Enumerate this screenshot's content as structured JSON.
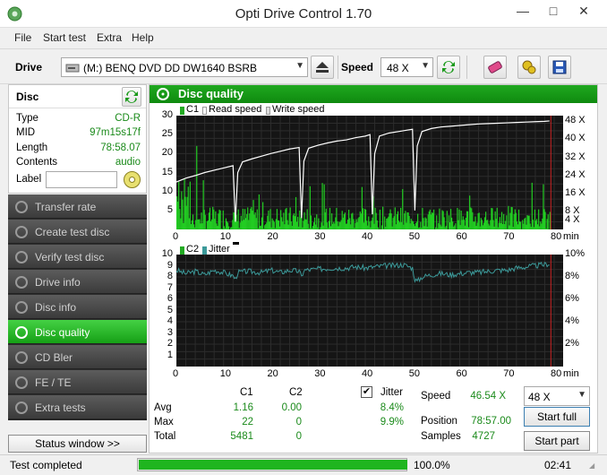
{
  "window": {
    "title": "Opti Drive Control 1.70"
  },
  "menu": {
    "items": [
      "File",
      "Start test",
      "Extra",
      "Help"
    ]
  },
  "toolbar": {
    "drive_label": "Drive",
    "drive_value": "(M:)   BENQ DVD DD DW1640 BSRB",
    "speed_label": "Speed",
    "speed_value": "48 X"
  },
  "disc": {
    "title": "Disc",
    "type_label": "Type",
    "type_value": "CD-R",
    "mid_label": "MID",
    "mid_value": "97m15s17f",
    "length_label": "Length",
    "length_value": "78:58.07",
    "contents_label": "Contents",
    "contents_value": "audio",
    "label_label": "Label",
    "label_value": ""
  },
  "nav": {
    "items": [
      "Transfer rate",
      "Create test disc",
      "Verify test disc",
      "Drive info",
      "Disc info",
      "Disc quality",
      "CD Bler",
      "FE / TE",
      "Extra tests"
    ],
    "active": 5
  },
  "status_window_label": "Status window >>",
  "main": {
    "title": "Disc quality"
  },
  "chart_data": [
    {
      "type": "bar",
      "legend": [
        "C1",
        "Read speed",
        "Write speed"
      ],
      "x_ticks": [
        "0",
        "10",
        "20",
        "30",
        "40",
        "50",
        "60",
        "70",
        "80"
      ],
      "x_unit": "min",
      "y_ticks_left": [
        "5",
        "10",
        "15",
        "20",
        "25",
        "30"
      ],
      "y_ticks_right": [
        "4 X",
        "8 X",
        "16 X",
        "24 X",
        "32 X",
        "40 X",
        "48 X"
      ],
      "xlim": [
        0,
        80
      ],
      "ylim": [
        0,
        30
      ],
      "c1_avg": 1.16,
      "c1_max": 22,
      "speed": [
        [
          0,
          12.5
        ],
        [
          2,
          13.5
        ],
        [
          4,
          14.2
        ],
        [
          6,
          15
        ],
        [
          8,
          15.6
        ],
        [
          10,
          16.2
        ],
        [
          12,
          16.8
        ],
        [
          12.5,
          2
        ],
        [
          13,
          15
        ],
        [
          14,
          17.8
        ],
        [
          16,
          18.6
        ],
        [
          18,
          19.3
        ],
        [
          20,
          20
        ],
        [
          22,
          20.6
        ],
        [
          24,
          21.2
        ],
        [
          26,
          21.6
        ],
        [
          26.5,
          3
        ],
        [
          27,
          18
        ],
        [
          28,
          21.4
        ],
        [
          30,
          22.2
        ],
        [
          32,
          22.8
        ],
        [
          34,
          23.3
        ],
        [
          36,
          23.6
        ],
        [
          38,
          24.2
        ],
        [
          40,
          24.6
        ],
        [
          41,
          25
        ],
        [
          41.5,
          4
        ],
        [
          42,
          20
        ],
        [
          43,
          24.6
        ],
        [
          45,
          25.4
        ],
        [
          47,
          25.8
        ],
        [
          49,
          26.2
        ],
        [
          50,
          26.4
        ],
        [
          50.5,
          5
        ],
        [
          51,
          22
        ],
        [
          52,
          25.8
        ],
        [
          54,
          26.6
        ],
        [
          56,
          27
        ],
        [
          58,
          27.2
        ],
        [
          60,
          27.4
        ],
        [
          62,
          27.6
        ],
        [
          64,
          27.8
        ],
        [
          66,
          27.9
        ],
        [
          68,
          28
        ],
        [
          70,
          28.1
        ],
        [
          72,
          28.2
        ],
        [
          74,
          28.3
        ],
        [
          76,
          28.4
        ],
        [
          78,
          28.5
        ],
        [
          79,
          28.6
        ]
      ]
    },
    {
      "type": "line",
      "legend": [
        "C2",
        "Jitter"
      ],
      "x_ticks": [
        "0",
        "10",
        "20",
        "30",
        "40",
        "50",
        "60",
        "70",
        "80"
      ],
      "x_unit": "min",
      "y_ticks_left": [
        "1",
        "2",
        "3",
        "4",
        "5",
        "6",
        "7",
        "8",
        "9",
        "10"
      ],
      "y_ticks_right": [
        "2%",
        "4%",
        "6%",
        "8%",
        "10%"
      ],
      "xlim": [
        0,
        80
      ],
      "ylim": [
        0,
        10
      ],
      "jitter": [
        [
          0,
          8.6
        ],
        [
          2,
          8.3
        ],
        [
          4,
          8.5
        ],
        [
          6,
          8.2
        ],
        [
          8,
          8.6
        ],
        [
          10,
          8.4
        ],
        [
          12,
          8.1
        ],
        [
          12.5,
          7.8
        ],
        [
          13,
          8.4
        ],
        [
          15,
          8.5
        ],
        [
          18,
          8.4
        ],
        [
          20,
          8.6
        ],
        [
          22,
          8.4
        ],
        [
          24,
          8.6
        ],
        [
          26,
          8.5
        ],
        [
          26.5,
          8.0
        ],
        [
          27,
          8.6
        ],
        [
          30,
          8.7
        ],
        [
          33,
          8.8
        ],
        [
          36,
          8.8
        ],
        [
          38,
          8.9
        ],
        [
          40,
          8.8
        ],
        [
          42,
          8.9
        ],
        [
          44,
          9.0
        ],
        [
          46,
          9.0
        ],
        [
          48,
          9.1
        ],
        [
          50,
          8.8
        ],
        [
          50.5,
          7.8
        ],
        [
          51,
          7.6
        ],
        [
          52,
          8.0
        ],
        [
          54,
          8.2
        ],
        [
          56,
          8.3
        ],
        [
          58,
          8.2
        ],
        [
          60,
          8.3
        ],
        [
          62,
          8.4
        ],
        [
          64,
          8.4
        ],
        [
          66,
          8.5
        ],
        [
          68,
          8.6
        ],
        [
          70,
          8.6
        ],
        [
          72,
          8.8
        ],
        [
          74,
          8.9
        ],
        [
          76,
          9.0
        ],
        [
          78,
          9.1
        ],
        [
          79,
          9.2
        ]
      ]
    }
  ],
  "stats": {
    "col_c1": "C1",
    "col_c2": "C2",
    "jitter_label": "Jitter",
    "jitter_checked": "✔",
    "avg_label": "Avg",
    "max_label": "Max",
    "total_label": "Total",
    "avg_c1": "1.16",
    "avg_c2": "0.00",
    "avg_jitter": "8.4%",
    "max_c1": "22",
    "max_c2": "0",
    "max_jitter": "9.9%",
    "total_c1": "5481",
    "total_c2": "0"
  },
  "info": {
    "speed_label": "Speed",
    "speed_value": "46.54 X",
    "position_label": "Position",
    "position_value": "78:57.00",
    "samples_label": "Samples",
    "samples_value": "4727",
    "speed_select": "48 X",
    "start_full": "Start full",
    "start_part": "Start part"
  },
  "statusbar": {
    "status_text": "Test completed",
    "progress_text": "100.0%",
    "progress_fraction": 1.0,
    "time": "02:41"
  },
  "colors": {
    "green": "#1a8a1a",
    "accent": "#16a016",
    "chart_bg": "#151515",
    "c1": "#22cc22",
    "speed": "#ffffff",
    "jitter": "#3c9a9a",
    "marker": "#cc2222"
  }
}
